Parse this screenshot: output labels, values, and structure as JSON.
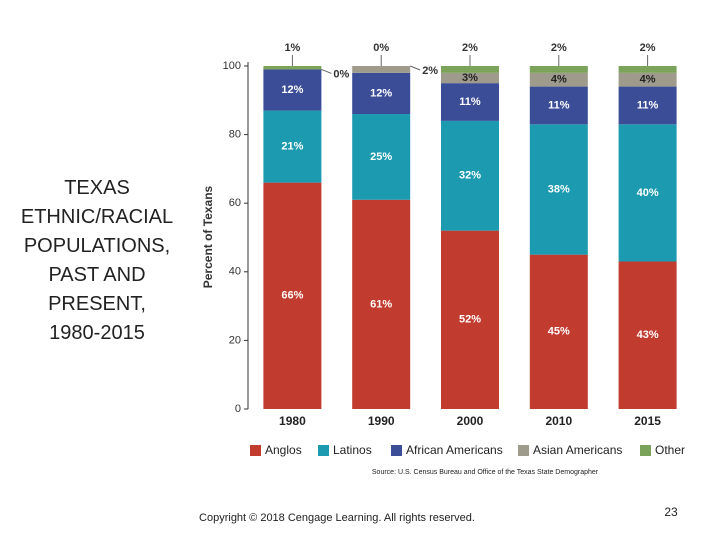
{
  "slide": {
    "title_lines": [
      "TEXAS",
      "ETHNIC/RACIAL",
      "POPULATIONS,",
      "PAST AND",
      "PRESENT,",
      "1980-2015"
    ],
    "source": "Source: U.S. Census Bureau and Office of the Texas State Demographer",
    "copyright": "Copyright © 2018 Cengage Learning.  All rights reserved.",
    "page_number": "23"
  },
  "chart_data": {
    "type": "stacked_bar",
    "y_label": "Percent of Texans",
    "categories": [
      "1980",
      "1990",
      "2000",
      "2010",
      "2015"
    ],
    "series": [
      {
        "name": "Anglos",
        "color": "#c23b2f",
        "values": [
          66,
          61,
          52,
          45,
          43
        ],
        "value_labels": [
          "66%",
          "61%",
          "52%",
          "45%",
          "43%"
        ]
      },
      {
        "name": "Latinos",
        "color": "#1c9ab0",
        "values": [
          21,
          25,
          32,
          38,
          40
        ],
        "value_labels": [
          "21%",
          "25%",
          "32%",
          "38%",
          "40%"
        ]
      },
      {
        "name": "African Americans",
        "color": "#3c4d98",
        "values": [
          12,
          12,
          11,
          11,
          11
        ],
        "value_labels": [
          "12%",
          "12%",
          "11%",
          "11%",
          "11%"
        ]
      },
      {
        "name": "Asian Americans",
        "color": "#9e9a8c",
        "values": [
          0,
          2,
          3,
          4,
          4
        ],
        "value_labels": [
          "0%",
          "2%",
          "3%",
          "4%",
          "4%"
        ]
      },
      {
        "name": "Other",
        "color": "#7ba35a",
        "values": [
          1,
          0,
          2,
          2,
          2
        ],
        "value_labels": [
          "1%",
          "0%",
          "2%",
          "2%",
          "2%"
        ]
      }
    ],
    "ylim": [
      0,
      100
    ],
    "yticks": [
      0,
      20,
      40,
      60,
      80,
      100
    ],
    "grid": false,
    "legend": "bottom"
  }
}
